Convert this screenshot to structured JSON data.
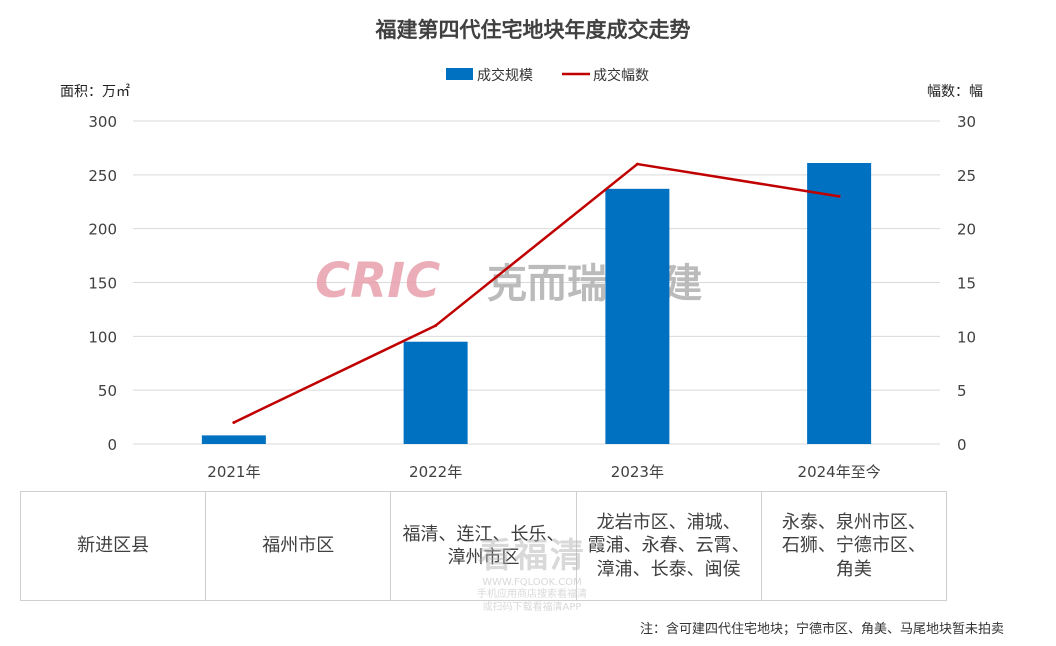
{
  "chart_data": {
    "type": "bar",
    "title": "福建第四代住宅地块年度成交走势",
    "categories": [
      "2021年",
      "2022年",
      "2023年",
      "2024年至今"
    ],
    "series": [
      {
        "name": "成交规模",
        "type": "bar",
        "axis": "left",
        "values": [
          8,
          95,
          237,
          261
        ],
        "color": "#0070C0"
      },
      {
        "name": "成交幅数",
        "type": "line",
        "axis": "right",
        "values": [
          2,
          11,
          26,
          23
        ],
        "color": "#C00000"
      }
    ],
    "ylabel_left": "面积：万㎡",
    "ylabel_right": "幅数：幅",
    "ylim_left": [
      0,
      300
    ],
    "ylim_right": [
      0,
      30
    ],
    "yticks_left": [
      0,
      50,
      100,
      150,
      200,
      250,
      300
    ],
    "yticks_right": [
      0,
      5,
      10,
      15,
      20,
      25,
      30
    ],
    "grid": true,
    "legend_position": "top-center"
  },
  "watermark": {
    "brand_latin": "CRIC",
    "brand_zh": "克而瑞·福建"
  },
  "table": {
    "row_label": "新进区县",
    "cells": [
      "福州市区",
      "福清、连江、长乐、\n漳州市区",
      "龙岩市区、浦城、\n霞浦、永春、云霄、\n漳浦、长泰、闽侯",
      "永泰、泉州市区、\n石狮、宁德市区、\n角美"
    ]
  },
  "note": "注：含可建四代住宅地块；宁德市区、角美、马尾地块暂未拍卖",
  "watermark2": {
    "big": "看福清",
    "url": "WWW.FQLOOK.COM",
    "line1": "手机应用商店搜索看福清",
    "line2": "或扫码下载看福清APP"
  }
}
